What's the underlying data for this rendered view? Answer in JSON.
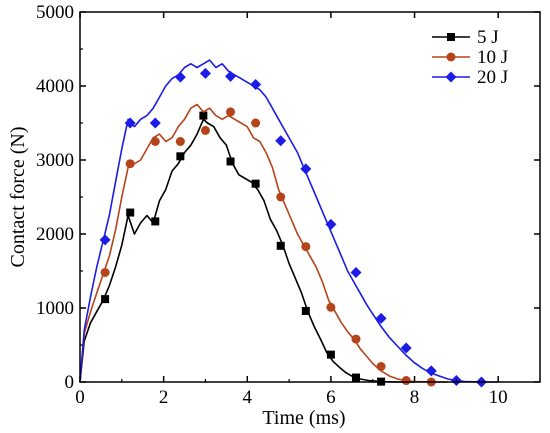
{
  "chart_data": {
    "type": "line",
    "xlabel": "Time (ms)",
    "ylabel": "Contact force (N)",
    "xlim": [
      0,
      11
    ],
    "ylim": [
      0,
      5000
    ],
    "x_ticks": [
      0,
      2,
      4,
      6,
      8,
      10
    ],
    "y_ticks": [
      0,
      1000,
      2000,
      3000,
      4000,
      5000
    ],
    "x_tick_labels": [
      "0",
      "2",
      "4",
      "6",
      "8",
      "10"
    ],
    "y_tick_labels": [
      "0",
      "1000",
      "2000",
      "3000",
      "4000",
      "5000"
    ],
    "grid": false,
    "legend_position": "top-right",
    "series": [
      {
        "name": "5 J",
        "color": "#000000",
        "marker": "square",
        "line": [
          [
            0,
            0
          ],
          [
            0.1,
            550
          ],
          [
            0.25,
            800
          ],
          [
            0.4,
            950
          ],
          [
            0.55,
            1100
          ],
          [
            0.7,
            1300
          ],
          [
            0.85,
            1550
          ],
          [
            1.0,
            1850
          ],
          [
            1.15,
            2250
          ],
          [
            1.3,
            2000
          ],
          [
            1.45,
            2150
          ],
          [
            1.6,
            2250
          ],
          [
            1.75,
            2150
          ],
          [
            1.9,
            2450
          ],
          [
            2.05,
            2600
          ],
          [
            2.2,
            2850
          ],
          [
            2.35,
            2950
          ],
          [
            2.5,
            3100
          ],
          [
            2.65,
            3200
          ],
          [
            2.8,
            3350
          ],
          [
            2.95,
            3550
          ],
          [
            3.05,
            3500
          ],
          [
            3.2,
            3450
          ],
          [
            3.35,
            3300
          ],
          [
            3.5,
            3200
          ],
          [
            3.65,
            2950
          ],
          [
            3.8,
            2800
          ],
          [
            3.95,
            2750
          ],
          [
            4.1,
            2700
          ],
          [
            4.25,
            2600
          ],
          [
            4.4,
            2450
          ],
          [
            4.55,
            2200
          ],
          [
            4.7,
            2050
          ],
          [
            4.85,
            1850
          ],
          [
            5.0,
            1600
          ],
          [
            5.15,
            1400
          ],
          [
            5.3,
            1200
          ],
          [
            5.45,
            950
          ],
          [
            5.6,
            750
          ],
          [
            5.75,
            580
          ],
          [
            5.9,
            400
          ],
          [
            6.05,
            280
          ],
          [
            6.2,
            200
          ],
          [
            6.35,
            130
          ],
          [
            6.5,
            80
          ],
          [
            6.7,
            40
          ],
          [
            6.9,
            20
          ],
          [
            7.2,
            5
          ],
          [
            7.6,
            0
          ],
          [
            8.0,
            0
          ]
        ],
        "markers": [
          [
            0.6,
            1120
          ],
          [
            1.2,
            2290
          ],
          [
            1.8,
            2170
          ],
          [
            2.4,
            3050
          ],
          [
            2.95,
            3600
          ],
          [
            3.6,
            2980
          ],
          [
            4.2,
            2680
          ],
          [
            4.8,
            1840
          ],
          [
            5.4,
            960
          ],
          [
            6.0,
            370
          ],
          [
            6.6,
            60
          ],
          [
            7.2,
            5
          ]
        ]
      },
      {
        "name": "10 J",
        "color": "#b5441a",
        "marker": "circle",
        "line": [
          [
            0,
            0
          ],
          [
            0.1,
            650
          ],
          [
            0.25,
            950
          ],
          [
            0.4,
            1200
          ],
          [
            0.55,
            1450
          ],
          [
            0.7,
            1700
          ],
          [
            0.85,
            2050
          ],
          [
            1.0,
            2500
          ],
          [
            1.15,
            2900
          ],
          [
            1.3,
            2950
          ],
          [
            1.45,
            3000
          ],
          [
            1.6,
            3150
          ],
          [
            1.75,
            3300
          ],
          [
            1.9,
            3350
          ],
          [
            2.05,
            3250
          ],
          [
            2.2,
            3300
          ],
          [
            2.35,
            3450
          ],
          [
            2.5,
            3550
          ],
          [
            2.65,
            3700
          ],
          [
            2.8,
            3750
          ],
          [
            2.95,
            3650
          ],
          [
            3.1,
            3700
          ],
          [
            3.25,
            3600
          ],
          [
            3.4,
            3550
          ],
          [
            3.55,
            3600
          ],
          [
            3.7,
            3550
          ],
          [
            3.85,
            3500
          ],
          [
            4.0,
            3450
          ],
          [
            4.15,
            3300
          ],
          [
            4.3,
            3250
          ],
          [
            4.45,
            3100
          ],
          [
            4.6,
            2900
          ],
          [
            4.75,
            2600
          ],
          [
            4.9,
            2400
          ],
          [
            5.05,
            2200
          ],
          [
            5.2,
            2000
          ],
          [
            5.35,
            1850
          ],
          [
            5.5,
            1700
          ],
          [
            5.65,
            1550
          ],
          [
            5.8,
            1350
          ],
          [
            5.95,
            1100
          ],
          [
            6.1,
            950
          ],
          [
            6.25,
            800
          ],
          [
            6.4,
            680
          ],
          [
            6.55,
            580
          ],
          [
            6.7,
            450
          ],
          [
            6.85,
            350
          ],
          [
            7.0,
            250
          ],
          [
            7.2,
            150
          ],
          [
            7.4,
            80
          ],
          [
            7.6,
            40
          ],
          [
            7.8,
            15
          ],
          [
            8.0,
            5
          ],
          [
            8.4,
            0
          ],
          [
            8.8,
            0
          ]
        ],
        "markers": [
          [
            0.6,
            1480
          ],
          [
            1.2,
            2950
          ],
          [
            1.8,
            3250
          ],
          [
            2.4,
            3250
          ],
          [
            3.0,
            3400
          ],
          [
            3.6,
            3650
          ],
          [
            4.2,
            3500
          ],
          [
            4.8,
            2500
          ],
          [
            5.4,
            1830
          ],
          [
            6.0,
            1010
          ],
          [
            6.6,
            580
          ],
          [
            7.2,
            210
          ],
          [
            7.8,
            20
          ],
          [
            8.4,
            0
          ]
        ]
      },
      {
        "name": "20 J",
        "color": "#1c1ce6",
        "marker": "diamond",
        "line": [
          [
            0,
            0
          ],
          [
            0.1,
            700
          ],
          [
            0.25,
            1150
          ],
          [
            0.4,
            1550
          ],
          [
            0.55,
            1900
          ],
          [
            0.7,
            2250
          ],
          [
            0.85,
            2700
          ],
          [
            1.0,
            3150
          ],
          [
            1.15,
            3550
          ],
          [
            1.3,
            3450
          ],
          [
            1.45,
            3550
          ],
          [
            1.6,
            3600
          ],
          [
            1.75,
            3700
          ],
          [
            1.9,
            3850
          ],
          [
            2.05,
            4000
          ],
          [
            2.2,
            4100
          ],
          [
            2.35,
            4150
          ],
          [
            2.5,
            4250
          ],
          [
            2.65,
            4300
          ],
          [
            2.8,
            4250
          ],
          [
            2.95,
            4300
          ],
          [
            3.1,
            4350
          ],
          [
            3.25,
            4250
          ],
          [
            3.4,
            4300
          ],
          [
            3.55,
            4200
          ],
          [
            3.7,
            4150
          ],
          [
            3.85,
            4100
          ],
          [
            4.0,
            4050
          ],
          [
            4.15,
            4000
          ],
          [
            4.3,
            3950
          ],
          [
            4.45,
            3850
          ],
          [
            4.6,
            3700
          ],
          [
            4.75,
            3550
          ],
          [
            4.9,
            3400
          ],
          [
            5.05,
            3250
          ],
          [
            5.2,
            3100
          ],
          [
            5.35,
            2900
          ],
          [
            5.5,
            2700
          ],
          [
            5.65,
            2500
          ],
          [
            5.8,
            2300
          ],
          [
            5.95,
            2100
          ],
          [
            6.1,
            1900
          ],
          [
            6.25,
            1700
          ],
          [
            6.4,
            1500
          ],
          [
            6.55,
            1350
          ],
          [
            6.7,
            1200
          ],
          [
            6.85,
            1050
          ],
          [
            7.0,
            920
          ],
          [
            7.2,
            750
          ],
          [
            7.4,
            600
          ],
          [
            7.6,
            480
          ],
          [
            7.8,
            360
          ],
          [
            8.0,
            260
          ],
          [
            8.2,
            180
          ],
          [
            8.4,
            120
          ],
          [
            8.6,
            80
          ],
          [
            8.8,
            40
          ],
          [
            9.0,
            20
          ],
          [
            9.2,
            5
          ],
          [
            9.6,
            0
          ],
          [
            10.0,
            0
          ]
        ],
        "markers": [
          [
            0.6,
            1920
          ],
          [
            1.2,
            3500
          ],
          [
            1.8,
            3500
          ],
          [
            2.4,
            4120
          ],
          [
            3.0,
            4170
          ],
          [
            3.6,
            4130
          ],
          [
            4.2,
            4020
          ],
          [
            4.8,
            3260
          ],
          [
            5.4,
            2880
          ],
          [
            6.0,
            2130
          ],
          [
            6.6,
            1480
          ],
          [
            7.2,
            860
          ],
          [
            7.8,
            460
          ],
          [
            8.4,
            150
          ],
          [
            9.0,
            20
          ],
          [
            9.6,
            0
          ]
        ]
      }
    ]
  }
}
